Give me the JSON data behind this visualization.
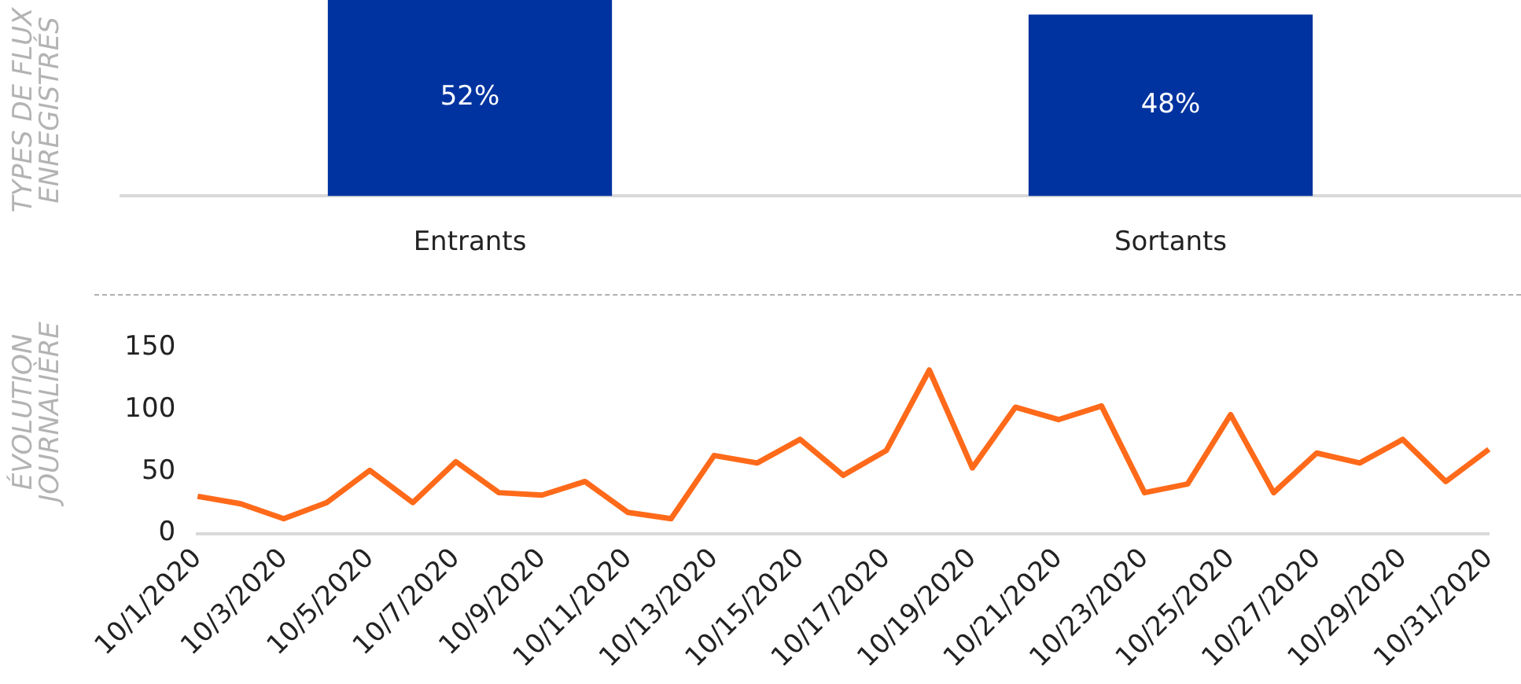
{
  "chart_data": [
    {
      "type": "bar",
      "ylabel": "TYPES DE FLUX ENREGISTRÉS",
      "categories": [
        "Entrants",
        "Sortants"
      ],
      "values": [
        52,
        48
      ],
      "value_labels": [
        "52%",
        "48%"
      ],
      "color": "#0033a0",
      "grid": false
    },
    {
      "type": "line",
      "ylabel": "ÉVOLUTION JOURNALIÈRE",
      "categories": [
        "10/1/2020",
        null,
        "10/3/2020",
        null,
        "10/5/2020",
        null,
        "10/7/2020",
        null,
        "10/9/2020",
        null,
        "10/11/2020",
        null,
        "10/13/2020",
        null,
        "10/15/2020",
        null,
        "10/17/2020",
        null,
        "10/19/2020",
        null,
        "10/21/2020",
        null,
        "10/23/2020",
        null,
        "10/25/2020",
        null,
        "10/27/2020",
        null,
        "10/29/2020",
        null,
        "10/31/2020"
      ],
      "series": [
        {
          "color": "#ff6a1a",
          "values": [
            30,
            24,
            12,
            25,
            51,
            25,
            58,
            33,
            31,
            42,
            17,
            12,
            63,
            57,
            76,
            47,
            67,
            132,
            53,
            102,
            92,
            103,
            33,
            40,
            96,
            33,
            65,
            57,
            76,
            42,
            68
          ]
        }
      ],
      "ylim": [
        0,
        150
      ],
      "yticks": [
        0,
        50,
        100,
        150
      ],
      "grid": false,
      "marker": "none",
      "line_style": "solid"
    }
  ]
}
